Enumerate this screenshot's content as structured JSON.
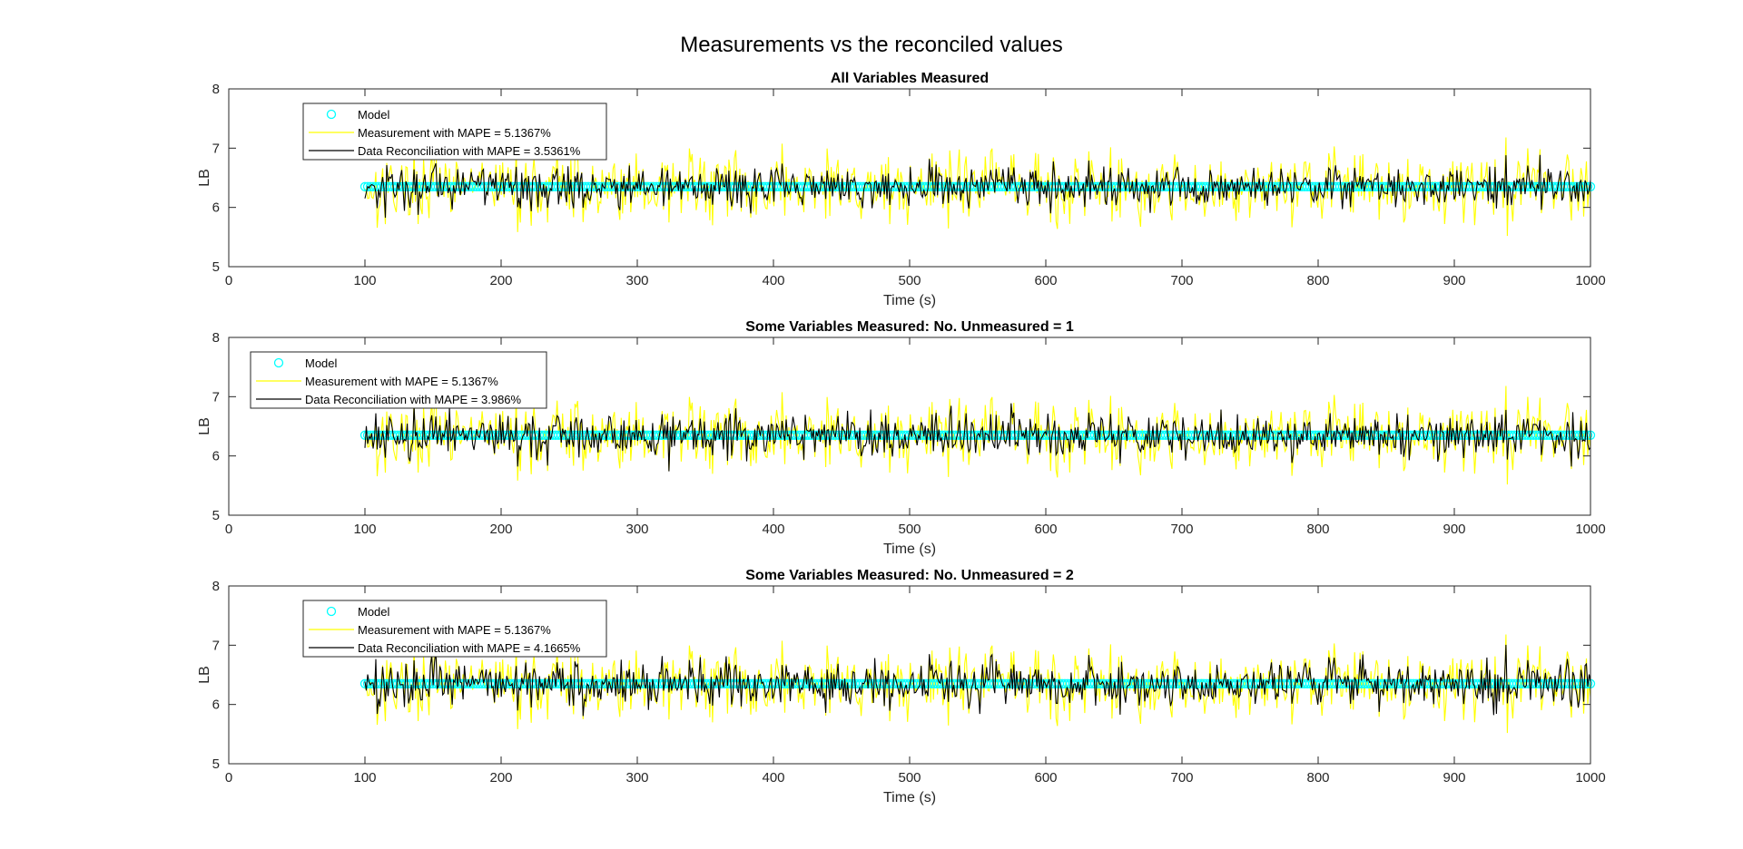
{
  "figure_title": "Measurements vs the reconciled values",
  "chart_data": [
    {
      "type": "line",
      "title": "All Variables Measured",
      "xlabel": "Time (s)",
      "ylabel": "LB",
      "xlim": [
        0,
        1000
      ],
      "ylim": [
        5,
        8
      ],
      "xticks": [
        "0",
        "100",
        "200",
        "300",
        "400",
        "500",
        "600",
        "700",
        "800",
        "900",
        "1000"
      ],
      "yticks": [
        "5",
        "6",
        "7",
        "8"
      ],
      "legend_position": "top-left",
      "series": [
        {
          "name": "Model",
          "style": "markers",
          "color": "#00ffff",
          "x_range": [
            100,
            1000
          ],
          "constant": 6.35
        },
        {
          "name": "Measurement with MAPE = 5.1367%",
          "style": "line",
          "color": "#ffff00",
          "x_range": [
            100,
            1000
          ],
          "mean": 6.35,
          "spread": 0.42,
          "seed": 17
        },
        {
          "name": "Data Reconciliation with MAPE = 3.5361%",
          "style": "line",
          "color": "#000000",
          "x_range": [
            100,
            1000
          ],
          "mean": 6.35,
          "spread": 0.3,
          "seed": 31
        }
      ]
    },
    {
      "type": "line",
      "title": "Some Variables Measured: No. Unmeasured = 1",
      "xlabel": "Time (s)",
      "ylabel": "LB",
      "xlim": [
        0,
        1000
      ],
      "ylim": [
        5,
        8
      ],
      "xticks": [
        "0",
        "100",
        "200",
        "300",
        "400",
        "500",
        "600",
        "700",
        "800",
        "900",
        "1000"
      ],
      "yticks": [
        "5",
        "6",
        "7",
        "8"
      ],
      "legend_position": "top-left",
      "series": [
        {
          "name": "Model",
          "style": "markers",
          "color": "#00ffff",
          "x_range": [
            100,
            1000
          ],
          "constant": 6.35
        },
        {
          "name": "Measurement with MAPE = 5.1367%",
          "style": "line",
          "color": "#ffff00",
          "x_range": [
            100,
            1000
          ],
          "mean": 6.35,
          "spread": 0.42,
          "seed": 17
        },
        {
          "name": "Data Reconciliation with MAPE = 3.986%",
          "style": "line",
          "color": "#000000",
          "x_range": [
            100,
            1000
          ],
          "mean": 6.35,
          "spread": 0.33,
          "seed": 47
        }
      ]
    },
    {
      "type": "line",
      "title": "Some Variables Measured: No. Unmeasured = 2",
      "xlabel": "Time (s)",
      "ylabel": "LB",
      "xlim": [
        0,
        1000
      ],
      "ylim": [
        5,
        8
      ],
      "xticks": [
        "0",
        "100",
        "200",
        "300",
        "400",
        "500",
        "600",
        "700",
        "800",
        "900",
        "1000"
      ],
      "yticks": [
        "5",
        "6",
        "7",
        "8"
      ],
      "legend_position": "top-left",
      "series": [
        {
          "name": "Model",
          "style": "markers",
          "color": "#00ffff",
          "x_range": [
            100,
            1000
          ],
          "constant": 6.35
        },
        {
          "name": "Measurement with MAPE = 5.1367%",
          "style": "line",
          "color": "#ffff00",
          "x_range": [
            100,
            1000
          ],
          "mean": 6.35,
          "spread": 0.42,
          "seed": 17
        },
        {
          "name": "Data Reconciliation with MAPE = 4.1665%",
          "style": "line",
          "color": "#000000",
          "x_range": [
            100,
            1000
          ],
          "mean": 6.35,
          "spread": 0.35,
          "seed": 73
        }
      ]
    }
  ]
}
